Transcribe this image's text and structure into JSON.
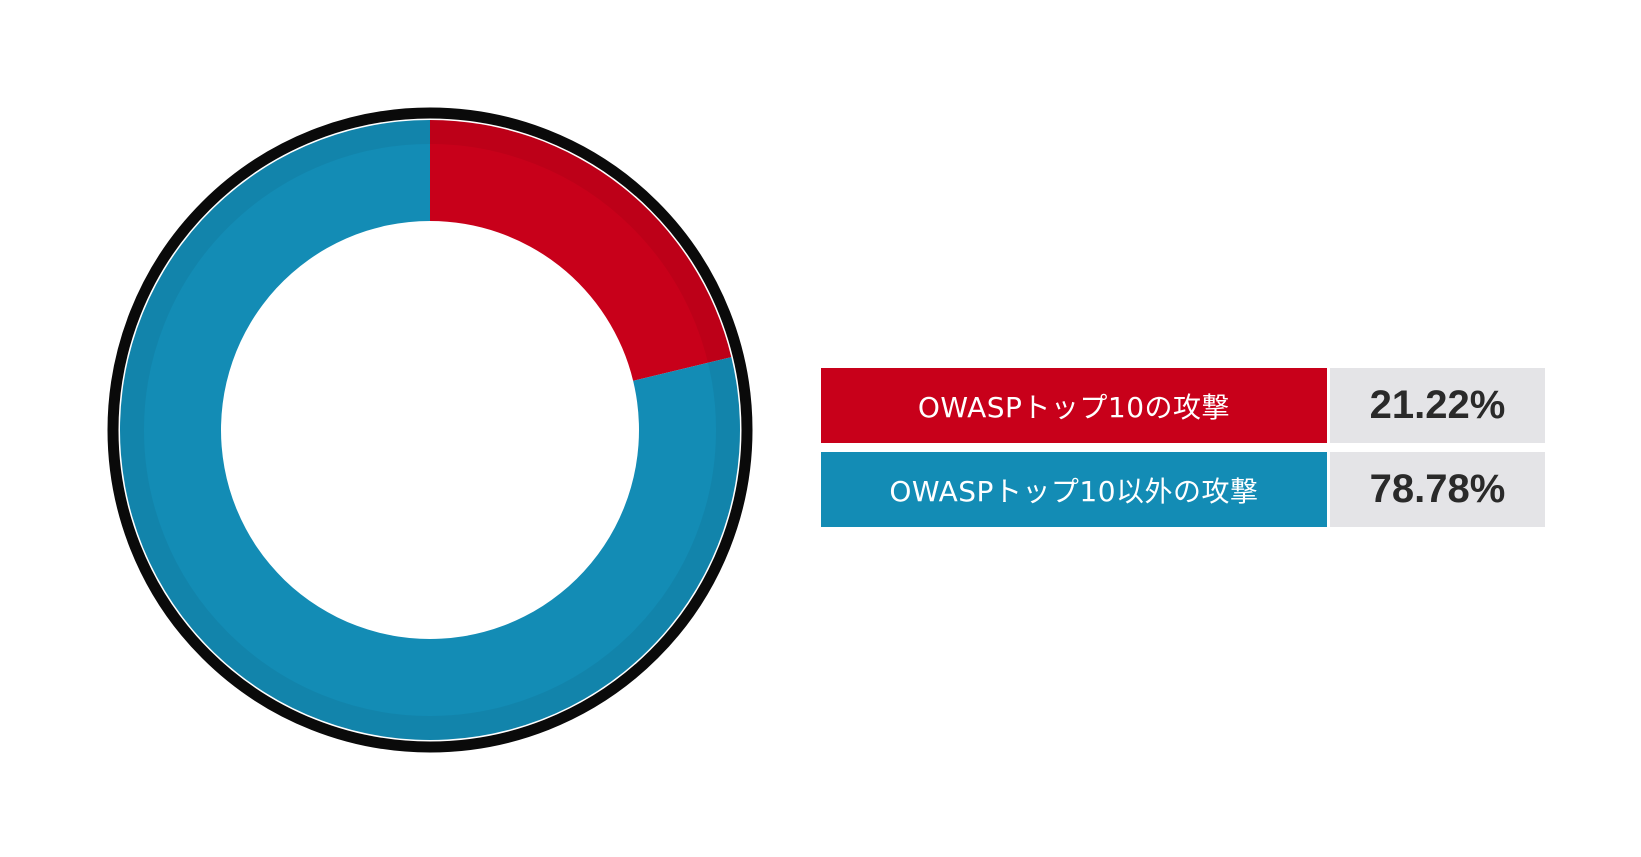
{
  "chart_data": {
    "type": "pie",
    "variant": "donut",
    "title": "",
    "slices": [
      {
        "label": "OWASPトップ10の攻撃",
        "value": 21.22,
        "display": "21.22%",
        "color": "#c8001a"
      },
      {
        "label": "OWASPトップ10以外の攻撃",
        "value": 78.78,
        "display": "78.78%",
        "color": "#138cb5"
      }
    ],
    "legend_position": "right",
    "start_angle_deg": 0,
    "direction": "clockwise"
  }
}
